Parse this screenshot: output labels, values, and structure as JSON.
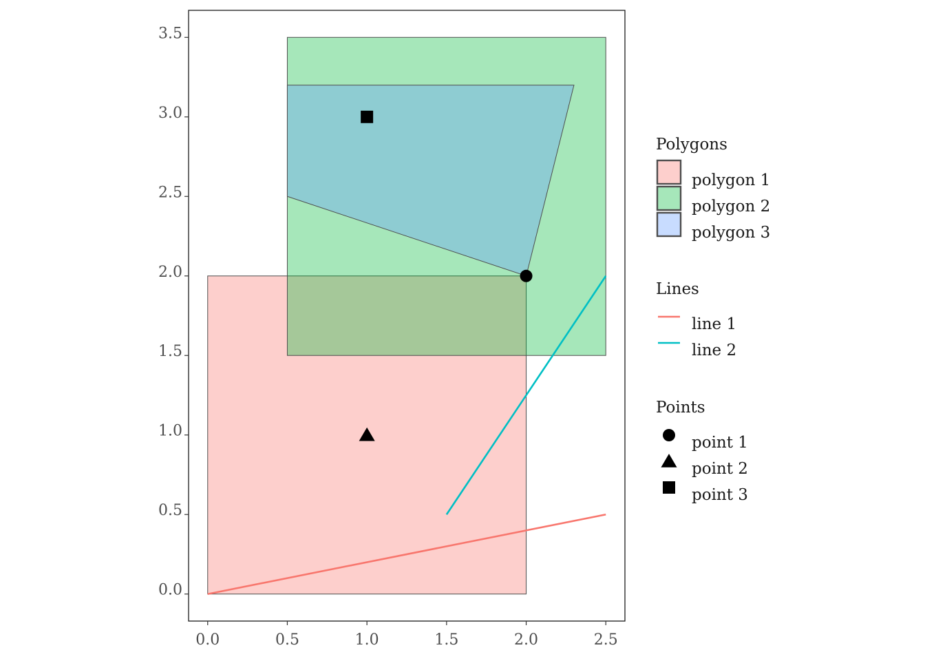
{
  "chart_data": {
    "type": "scatter",
    "title": "",
    "xlabel": "",
    "ylabel": "",
    "xlim": [
      -0.12,
      2.62
    ],
    "ylim": [
      -0.17,
      3.67
    ],
    "x_ticks": [
      "0.0",
      "0.5",
      "1.0",
      "1.5",
      "2.0",
      "2.5"
    ],
    "x_tick_values": [
      0.0,
      0.5,
      1.0,
      1.5,
      2.0,
      2.5
    ],
    "y_ticks": [
      "0.0",
      "0.5",
      "1.0",
      "1.5",
      "2.0",
      "2.5",
      "3.0",
      "3.5"
    ],
    "y_tick_values": [
      0.0,
      0.5,
      1.0,
      1.5,
      2.0,
      2.5,
      3.0,
      3.5
    ],
    "grid": false,
    "legend_placement": "right",
    "polygons": [
      {
        "name": "polygon 1",
        "fill": "#F8766D",
        "coords": [
          [
            0,
            0
          ],
          [
            2,
            0
          ],
          [
            2,
            2
          ],
          [
            0,
            2
          ]
        ]
      },
      {
        "name": "polygon 2",
        "fill": "#00BA38",
        "coords": [
          [
            0.5,
            1.5
          ],
          [
            2.5,
            1.5
          ],
          [
            2.5,
            3.5
          ],
          [
            0.5,
            3.5
          ]
        ]
      },
      {
        "name": "polygon 3",
        "fill": "#619CFF",
        "coords": [
          [
            0.5,
            2.5
          ],
          [
            2,
            2
          ],
          [
            2.3,
            3.2
          ],
          [
            0.5,
            3.2
          ]
        ]
      }
    ],
    "lines": [
      {
        "name": "line 1",
        "color": "#F8766D",
        "coords": [
          [
            0,
            0
          ],
          [
            2.5,
            0.5
          ]
        ]
      },
      {
        "name": "line 2",
        "color": "#00BFC4",
        "coords": [
          [
            1.5,
            0.5
          ],
          [
            2.5,
            2
          ]
        ]
      }
    ],
    "points": [
      {
        "name": "point 1",
        "shape": "circle",
        "x": 2,
        "y": 2
      },
      {
        "name": "point 2",
        "shape": "triangle",
        "x": 1,
        "y": 1
      },
      {
        "name": "point 3",
        "shape": "square",
        "x": 1,
        "y": 3
      }
    ],
    "legend": {
      "polygons_title": "Polygons",
      "lines_title": "Lines",
      "points_title": "Points"
    }
  }
}
